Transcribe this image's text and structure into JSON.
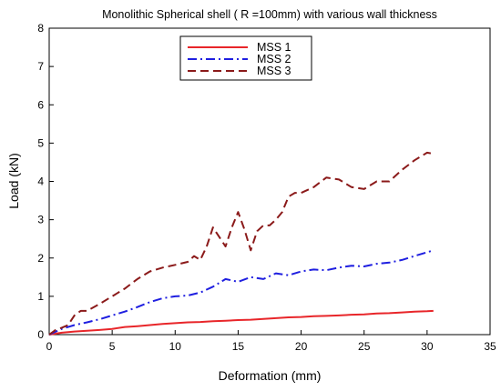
{
  "chart_data": {
    "type": "line",
    "title": "Monolithic Spherical shell ( R =100mm) with various wall thickness",
    "xlabel": "Deformation (mm)",
    "ylabel": "Load (kN)",
    "xlim": [
      0,
      35
    ],
    "ylim": [
      0,
      8
    ],
    "xticks": [
      0,
      5,
      10,
      15,
      20,
      25,
      30,
      35
    ],
    "yticks": [
      0,
      1,
      2,
      3,
      4,
      5,
      6,
      7,
      8
    ],
    "grid": false,
    "legend_position": "top-center",
    "series": [
      {
        "name": "MSS 1",
        "color": "#e8262a",
        "dash": "solid",
        "x": [
          0,
          1,
          2,
          3,
          4,
          5,
          6,
          7,
          8,
          9,
          10,
          11,
          12,
          13,
          14,
          15,
          16,
          17,
          18,
          19,
          20,
          21,
          22,
          23,
          24,
          25,
          26,
          27,
          28,
          29,
          30,
          30.5
        ],
        "y": [
          0,
          0.05,
          0.08,
          0.1,
          0.12,
          0.15,
          0.2,
          0.22,
          0.25,
          0.28,
          0.3,
          0.32,
          0.33,
          0.35,
          0.36,
          0.38,
          0.39,
          0.41,
          0.43,
          0.45,
          0.46,
          0.48,
          0.49,
          0.5,
          0.52,
          0.53,
          0.55,
          0.56,
          0.58,
          0.6,
          0.61,
          0.62
        ]
      },
      {
        "name": "MSS 2",
        "color": "#1f1fe0",
        "dash": "dash-dot",
        "x": [
          0,
          1,
          2,
          3,
          4,
          5,
          6,
          7,
          8,
          9,
          10,
          11,
          12,
          13,
          14,
          15,
          16,
          17,
          18,
          19,
          20,
          21,
          22,
          23,
          24,
          25,
          26,
          27,
          28,
          29,
          30,
          30.5
        ],
        "y": [
          0,
          0.15,
          0.25,
          0.32,
          0.4,
          0.5,
          0.6,
          0.72,
          0.85,
          0.95,
          1.0,
          1.02,
          1.1,
          1.25,
          1.45,
          1.38,
          1.5,
          1.45,
          1.6,
          1.55,
          1.65,
          1.7,
          1.68,
          1.75,
          1.8,
          1.78,
          1.85,
          1.88,
          1.95,
          2.05,
          2.15,
          2.2
        ]
      },
      {
        "name": "MSS 3",
        "color": "#8b1a1a",
        "dash": "dashed",
        "x": [
          0,
          0.5,
          1,
          1.5,
          2,
          2.5,
          3,
          4,
          5,
          6,
          7,
          8,
          9,
          10,
          11,
          11.5,
          12,
          12.5,
          13,
          13.5,
          14,
          14.5,
          15,
          15.5,
          16,
          16.5,
          17,
          17.5,
          18,
          18.5,
          19,
          19.5,
          20,
          21,
          22,
          23,
          24,
          25,
          26,
          27,
          28,
          29,
          30,
          30.5
        ],
        "y": [
          0,
          0.12,
          0.18,
          0.25,
          0.5,
          0.62,
          0.62,
          0.8,
          1.0,
          1.2,
          1.45,
          1.65,
          1.75,
          1.82,
          1.9,
          2.05,
          1.95,
          2.3,
          2.8,
          2.55,
          2.3,
          2.8,
          3.2,
          2.75,
          2.2,
          2.7,
          2.85,
          2.85,
          3.0,
          3.2,
          3.6,
          3.7,
          3.7,
          3.85,
          4.1,
          4.05,
          3.85,
          3.8,
          4.0,
          4.0,
          4.3,
          4.55,
          4.75,
          4.72
        ]
      }
    ]
  }
}
